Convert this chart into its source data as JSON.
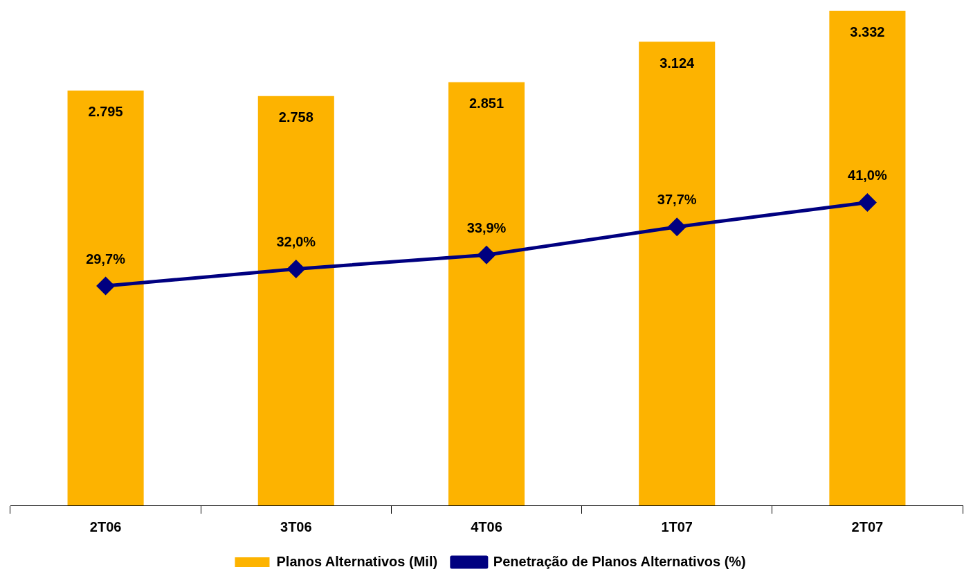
{
  "chart_data": {
    "type": "bar",
    "categories": [
      "2T06",
      "3T06",
      "4T06",
      "1T07",
      "2T07"
    ],
    "series": [
      {
        "name": "Planos Alternativos (Mil)",
        "color": "#fdb300",
        "values": [
          2795,
          2758,
          2851,
          3124,
          3332
        ],
        "value_labels": [
          "2.795",
          "2.758",
          "2.851",
          "3.124",
          "3.332"
        ]
      },
      {
        "name": "Penetração de Planos Alternativos (%)",
        "type": "line",
        "axis": "y2",
        "color": "#000080",
        "values": [
          29.7,
          32.0,
          33.9,
          37.7,
          41.0
        ],
        "value_labels": [
          "29,7%",
          "32,0%",
          "33,9%",
          "37,7%",
          "41,0%"
        ]
      }
    ],
    "ylim": [
      0,
      3335
    ],
    "y2lim": [
      0,
      67
    ],
    "tick_labels": "x",
    "legend": "bottom",
    "marker": "diamond",
    "line_style": "solid"
  }
}
